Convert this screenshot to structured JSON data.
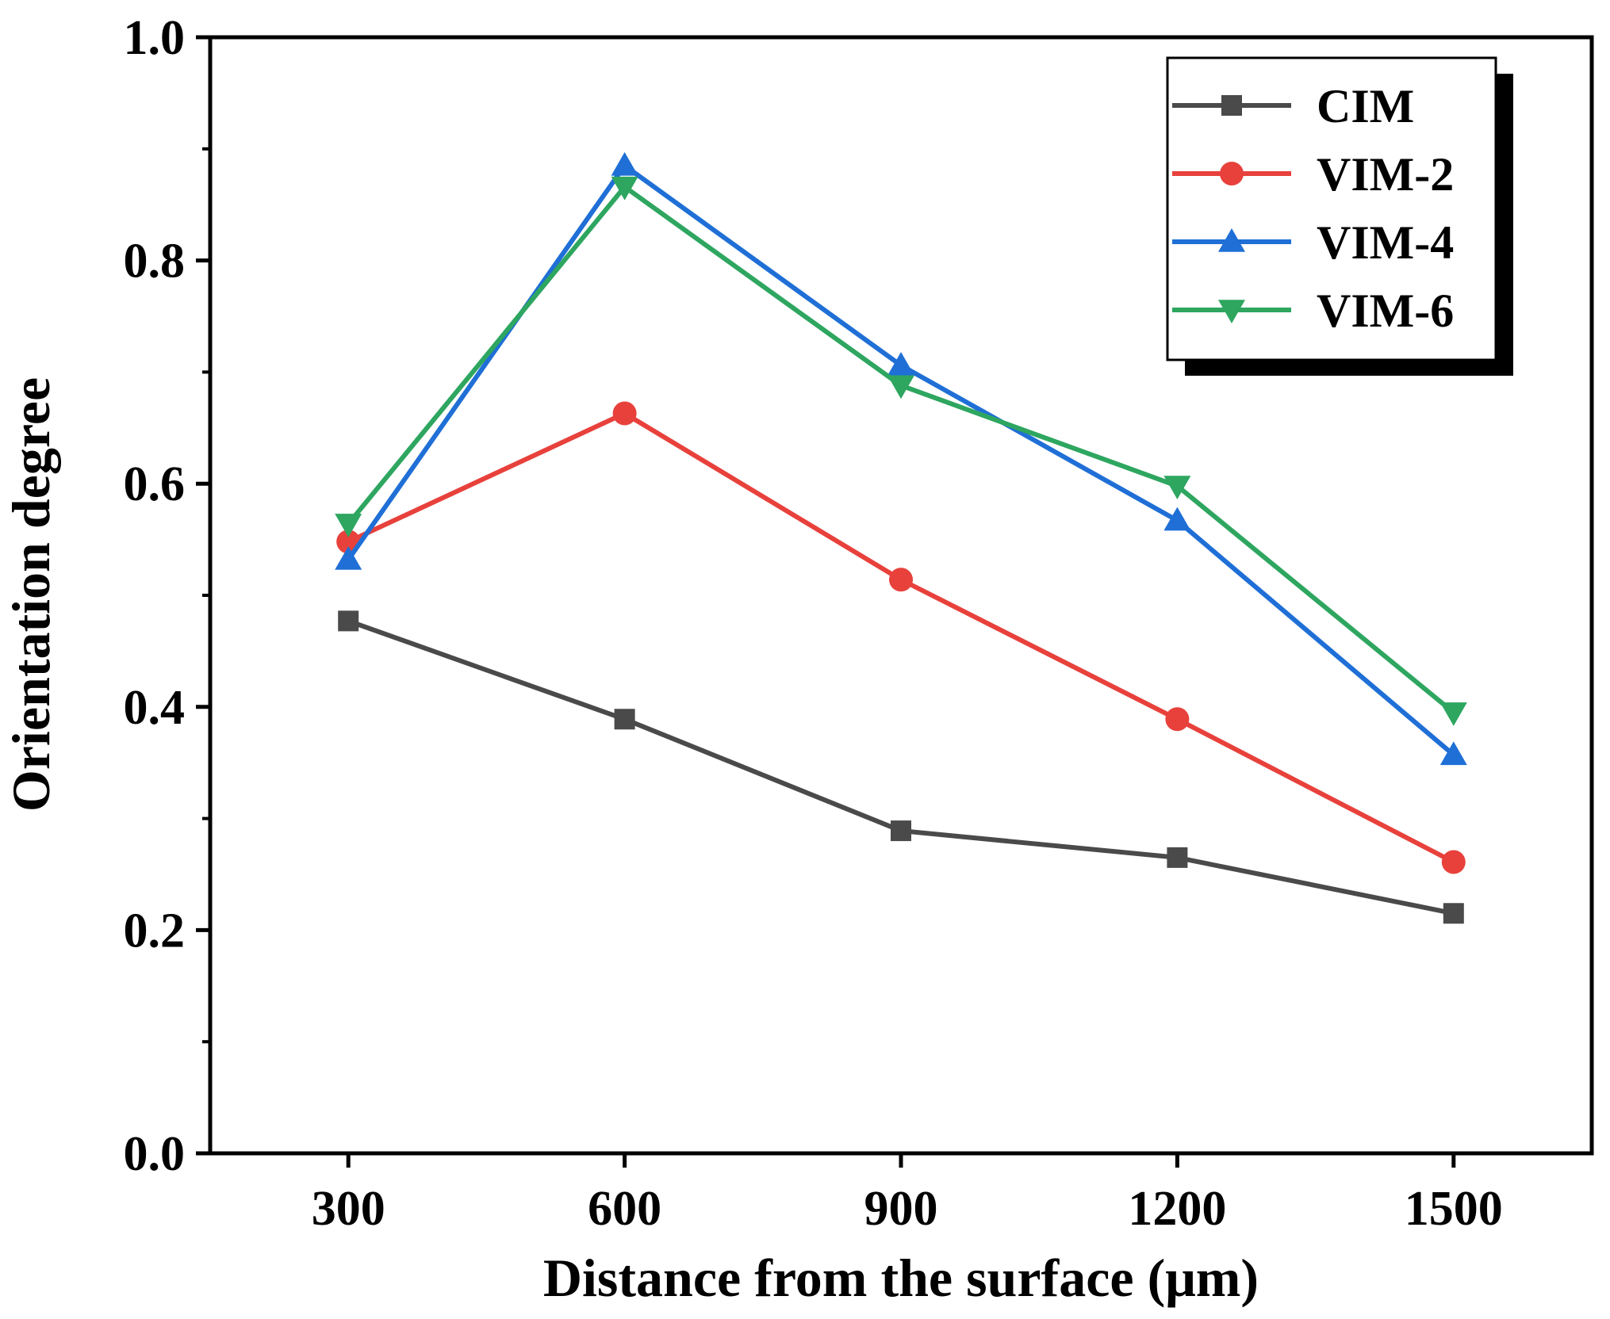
{
  "chart_data": {
    "type": "line",
    "title": "",
    "xlabel": "Distance from the surface (μm)",
    "ylabel": "Orientation degree",
    "x": [
      300,
      600,
      900,
      1200,
      1500
    ],
    "x_tick_labels": [
      "300",
      "600",
      "900",
      "1200",
      "1500"
    ],
    "xlim": [
      150,
      1650
    ],
    "ylim": [
      0.0,
      1.0
    ],
    "y_ticks": [
      0.0,
      0.2,
      0.4,
      0.6,
      0.8,
      1.0
    ],
    "y_tick_labels": [
      "0.0",
      "0.2",
      "0.4",
      "0.6",
      "0.8",
      "1.0"
    ],
    "grid": false,
    "legend_position": "top-right",
    "series": [
      {
        "name": "CIM",
        "color": "#4a4a4a",
        "marker": "square",
        "values": [
          0.477,
          0.389,
          0.289,
          0.265,
          0.215
        ]
      },
      {
        "name": "VIM-2",
        "color": "#e8413c",
        "marker": "circle",
        "values": [
          0.548,
          0.663,
          0.514,
          0.389,
          0.261
        ]
      },
      {
        "name": "VIM-4",
        "color": "#1f6fd6",
        "marker": "triangle-up",
        "values": [
          0.532,
          0.885,
          0.706,
          0.567,
          0.357
        ]
      },
      {
        "name": "VIM-6",
        "color": "#2ea660",
        "marker": "triangle-down",
        "values": [
          0.564,
          0.866,
          0.688,
          0.598,
          0.395
        ]
      }
    ]
  }
}
